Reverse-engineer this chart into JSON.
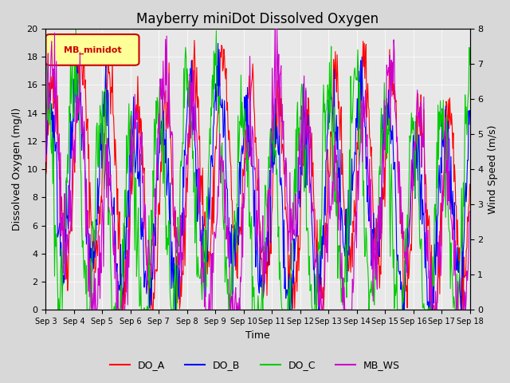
{
  "title": "Mayberry miniDot Dissolved Oxygen",
  "xlabel": "Time",
  "ylabel_left": "Dissolved Oxygen (mg/l)",
  "ylabel_right": "Wind Speed (m/s)",
  "ylim_left": [
    0,
    20
  ],
  "ylim_right": [
    0.0,
    8.0
  ],
  "yticks_left": [
    0,
    2,
    4,
    6,
    8,
    10,
    12,
    14,
    16,
    18,
    20
  ],
  "yticks_right": [
    0.0,
    1.0,
    2.0,
    3.0,
    4.0,
    5.0,
    6.0,
    7.0,
    8.0
  ],
  "xtick_labels": [
    "Sep 3",
    "Sep 4",
    "Sep 5",
    "Sep 6",
    "Sep 7",
    "Sep 8",
    "Sep 9",
    "Sep 10",
    "Sep 11",
    "Sep 12",
    "Sep 13",
    "Sep 14",
    "Sep 15",
    "Sep 16",
    "Sep 17",
    "Sep 18"
  ],
  "num_days": 15,
  "colors": {
    "DO_A": "#ff0000",
    "DO_B": "#0000ff",
    "DO_C": "#00cc00",
    "MB_WS": "#cc00cc"
  },
  "legend_label": "MB_minidot",
  "legend_box_color": "#cc0000",
  "legend_box_bg": "#ffff99",
  "fig_bg": "#d8d8d8",
  "plot_bg": "#e8e8e8",
  "title_fontsize": 12,
  "axis_label_fontsize": 9,
  "tick_fontsize": 8
}
